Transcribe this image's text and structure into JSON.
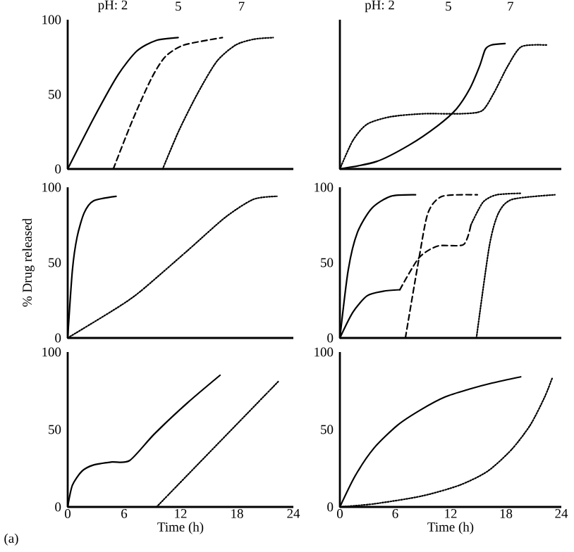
{
  "chart_data": [
    {
      "type": "line",
      "xlim": [
        0,
        24
      ],
      "ylim": [
        0,
        100
      ],
      "yticks": [
        0,
        50,
        100
      ],
      "tick_labels": "y",
      "annotations": [
        "pH: 2",
        "5",
        "7"
      ],
      "series": [
        {
          "color": "#000000",
          "line_style": "solid",
          "x": [
            0,
            2.85,
            5.35,
            7.35,
            9.35,
            11.75
          ],
          "values": [
            0,
            35,
            63,
            79,
            86,
            88
          ]
        },
        {
          "color": "#000000",
          "line_style": "dashed",
          "x": [
            4.85,
            6.85,
            8.85,
            10.35,
            12.35,
            16.45
          ],
          "values": [
            0,
            32,
            60,
            75,
            83,
            88
          ]
        },
        {
          "color": "#000000",
          "line_style": "dotted",
          "x": [
            10.1,
            11.85,
            13.85,
            15.85,
            17.85,
            19.85,
            21.85
          ],
          "values": [
            0,
            26,
            51,
            72,
            83,
            87,
            88
          ]
        }
      ]
    },
    {
      "type": "line",
      "xlim": [
        0,
        24
      ],
      "ylim": [
        0,
        100
      ],
      "tick_labels": false,
      "annotations": [
        "pH: 2",
        "5",
        "7"
      ],
      "series": [
        {
          "color": "#000000",
          "line_style": "solid",
          "x": [
            0,
            3.97,
            7.5,
            10.6,
            12.6,
            14.1,
            15.15,
            15.75,
            16.4,
            17.9
          ],
          "values": [
            0,
            5,
            16,
            29,
            40,
            54,
            69,
            80,
            83,
            84
          ]
        },
        {
          "color": "#000000",
          "line_style": "dotted",
          "x": [
            0,
            1.4,
            2.95,
            5.5,
            9.05,
            13.1,
            15.4,
            16.7,
            18.2,
            19.7,
            22.5
          ],
          "values": [
            0,
            19,
            30,
            35,
            37,
            37,
            39,
            51,
            69,
            82,
            83
          ]
        }
      ]
    },
    {
      "type": "line",
      "xlim": [
        0,
        24
      ],
      "ylim": [
        0,
        100
      ],
      "yticks": [
        0,
        50,
        100
      ],
      "tick_labels": "y",
      "ylabel": "% Drug released",
      "series": [
        {
          "color": "#000000",
          "line_style": "solid",
          "x": [
            0,
            0.5,
            1,
            1.75,
            2.75,
            5.15
          ],
          "values": [
            0,
            45,
            67,
            83,
            91,
            94
          ]
        },
        {
          "color": "#000000",
          "line_style": "dotted",
          "x": [
            0,
            5.25,
            7.75,
            12.75,
            16.75,
            19.75,
            22.25
          ],
          "values": [
            0,
            20,
            31,
            58,
            80,
            92,
            94
          ]
        }
      ]
    },
    {
      "type": "line",
      "xlim": [
        0,
        24
      ],
      "ylim": [
        0,
        100
      ],
      "yticks": [
        0,
        50,
        100
      ],
      "tick_labels": "y",
      "series": [
        {
          "color": "#000000",
          "line_style": "solid",
          "x": [
            0,
            0.9,
            1.9,
            3.45,
            5.5,
            8.2
          ],
          "values": [
            0,
            45,
            70,
            86,
            94,
            95
          ]
        },
        {
          "color": "#000000",
          "line_style": "solid",
          "x": [
            0,
            1.4,
            2.95,
            4.7,
            6.5
          ],
          "values": [
            0,
            17,
            28,
            31,
            32
          ]
        },
        {
          "color": "#000000",
          "line_style": "dashed",
          "x": [
            6.5,
            8.55,
            10.6,
            13.4,
            14.2
          ],
          "values": [
            32,
            53,
            61,
            62,
            75
          ]
        },
        {
          "color": "#000000",
          "line_style": "dotted",
          "x": [
            14.2,
            15.5,
            17,
            19.7
          ],
          "values": [
            75,
            90,
            95,
            96
          ]
        },
        {
          "color": "#000000",
          "line_style": "dashed",
          "x": [
            7.1,
            8.55,
            9.55,
            11.1,
            14.9
          ],
          "values": [
            0,
            52,
            83,
            94,
            95
          ]
        },
        {
          "color": "#000000",
          "line_style": "dotted",
          "x": [
            14.8,
            16.2,
            17.2,
            18.7,
            23.3
          ],
          "values": [
            0,
            61,
            83,
            92,
            95
          ]
        }
      ]
    },
    {
      "type": "line",
      "xlim": [
        0,
        24
      ],
      "ylim": [
        0,
        100
      ],
      "xticks": [
        0,
        6,
        12,
        18,
        24
      ],
      "yticks": [
        0,
        50,
        100
      ],
      "xlabel": "Time (h)",
      "annotations": [
        "(a)"
      ],
      "series": [
        {
          "color": "#000000",
          "line_style": "solid",
          "x": [
            0,
            0.5,
            1.5,
            2.7,
            4.7,
            6.6,
            9.2,
            12.7,
            16.2
          ],
          "values": [
            0,
            14,
            23,
            27,
            29,
            30,
            47,
            67,
            85
          ]
        },
        {
          "color": "#000000",
          "line_style": "dotted",
          "x": [
            9.45,
            22.4
          ],
          "values": [
            0,
            81
          ]
        }
      ]
    },
    {
      "type": "line",
      "xlim": [
        0,
        24
      ],
      "ylim": [
        0,
        100
      ],
      "xticks": [
        0,
        6,
        12,
        18,
        24
      ],
      "yticks": [
        0,
        50,
        100
      ],
      "xlabel": "Time (h)",
      "series": [
        {
          "color": "#000000",
          "line_style": "solid",
          "x": [
            0,
            1.65,
            3.7,
            6.3,
            8.85,
            11.4,
            14,
            16.5,
            19.6
          ],
          "values": [
            0,
            20,
            38,
            53,
            63,
            71,
            76,
            80,
            84
          ]
        },
        {
          "color": "#000000",
          "line_style": "dotted",
          "x": [
            0,
            3.7,
            8.85,
            12.95,
            16,
            18.6,
            20.65,
            22.2,
            23
          ],
          "values": [
            0,
            2,
            7,
            14,
            23,
            37,
            53,
            71,
            83
          ]
        }
      ]
    }
  ]
}
